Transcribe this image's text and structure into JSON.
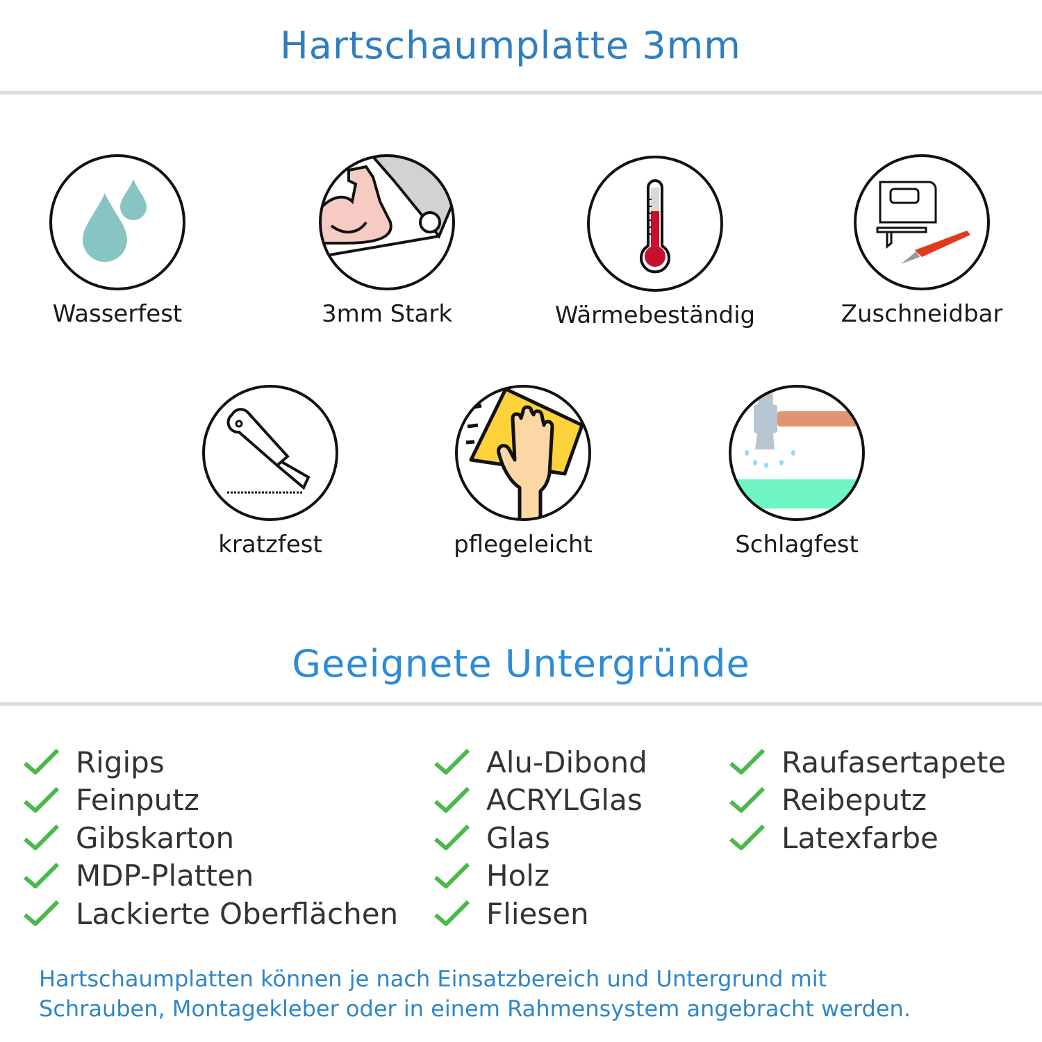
{
  "header": {
    "title": "Hartschaumplatte 3mm"
  },
  "features": [
    {
      "label": "Wasserfest",
      "icon": "water-drops-icon"
    },
    {
      "label": "3mm Stark",
      "icon": "strong-arm-icon"
    },
    {
      "label": "Wärmebeständig",
      "icon": "thermometer-icon"
    },
    {
      "label": "Zuschneidbar",
      "icon": "jigsaw-knife-icon"
    },
    {
      "label": "kratzfest",
      "icon": "cutter-knife-icon"
    },
    {
      "label": "pflegeleicht",
      "icon": "hand-cloth-icon"
    },
    {
      "label": "Schlagfest",
      "icon": "hammer-icon"
    }
  ],
  "surfaces": {
    "title": "Geeignete Untergründe",
    "columns": [
      [
        "Rigips",
        "Feinputz",
        "Gibskarton",
        "MDP-Platten",
        "Lackierte Oberflächen"
      ],
      [
        "Alu-Dibond",
        "ACRYLGlas",
        "Glas",
        "Holz",
        "Fliesen"
      ],
      [
        "Raufasertapete",
        "Reibeputz",
        "Latexfarbe"
      ]
    ],
    "check_color": "#4cb84c"
  },
  "footer": {
    "line1": "Hartschaumplatten können je nach Einsatzbereich und Untergrund mit",
    "line2": "Schrauben, Montagekleber oder in einem Rahmensystem angebracht werden."
  },
  "colors": {
    "title": "#2f7ec0",
    "subtitle": "#2e8bd6",
    "footer": "#2e86c8"
  }
}
